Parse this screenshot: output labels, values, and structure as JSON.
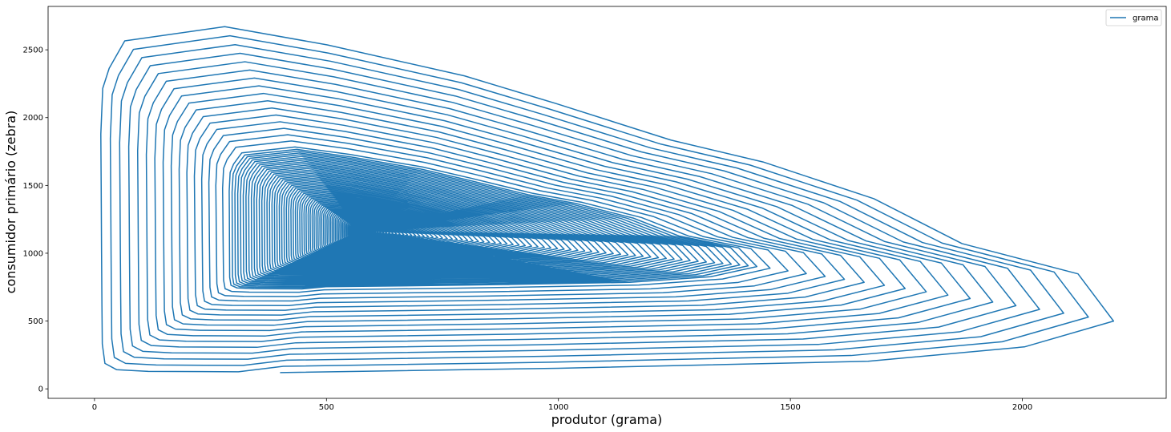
{
  "chart_data": {
    "type": "line",
    "title": "",
    "xlabel": "produtor (grama)",
    "ylabel": "consumidor primário (zebra)",
    "xlim": [
      -100,
      2310
    ],
    "ylim": [
      -70,
      2820
    ],
    "xticks": [
      0,
      500,
      1000,
      1500,
      2000
    ],
    "yticks": [
      0,
      500,
      1000,
      1500,
      2000,
      2500
    ],
    "xtick_labels": [
      "0",
      "500",
      "1000",
      "1500",
      "2000"
    ],
    "ytick_labels": [
      "0",
      "500",
      "1000",
      "1500",
      "2000",
      "2500"
    ],
    "grid": false,
    "legend": {
      "position": "top-right",
      "entries": [
        "grama"
      ]
    },
    "series": [
      {
        "name": "grama",
        "color": "#1f77b4",
        "description": "damped predator-prey phase trajectory spiraling inward from start point toward equilibrium",
        "start": [
          400,
          120
        ],
        "equilibrium": [
          575,
          1165
        ],
        "first_loop_vertices": [
          [
            400,
            120
          ],
          [
            1000,
            150
          ],
          [
            1670,
            200
          ],
          [
            2010,
            305
          ],
          [
            2205,
            495
          ],
          [
            2130,
            845
          ],
          [
            1880,
            1070
          ],
          [
            1690,
            1405
          ],
          [
            1450,
            1680
          ],
          [
            1250,
            1845
          ],
          [
            1000,
            2120
          ],
          [
            800,
            2330
          ],
          [
            500,
            2565
          ],
          [
            275,
            2705
          ],
          [
            55,
            2600
          ],
          [
            20,
            2395
          ],
          [
            5,
            2245
          ],
          [
            0,
            1900
          ],
          [
            0,
            1500
          ],
          [
            0,
            1000
          ],
          [
            0,
            600
          ],
          [
            0,
            300
          ],
          [
            5,
            150
          ],
          [
            30,
            100
          ],
          [
            100,
            85
          ],
          [
            300,
            80
          ]
        ]
      }
    ]
  }
}
